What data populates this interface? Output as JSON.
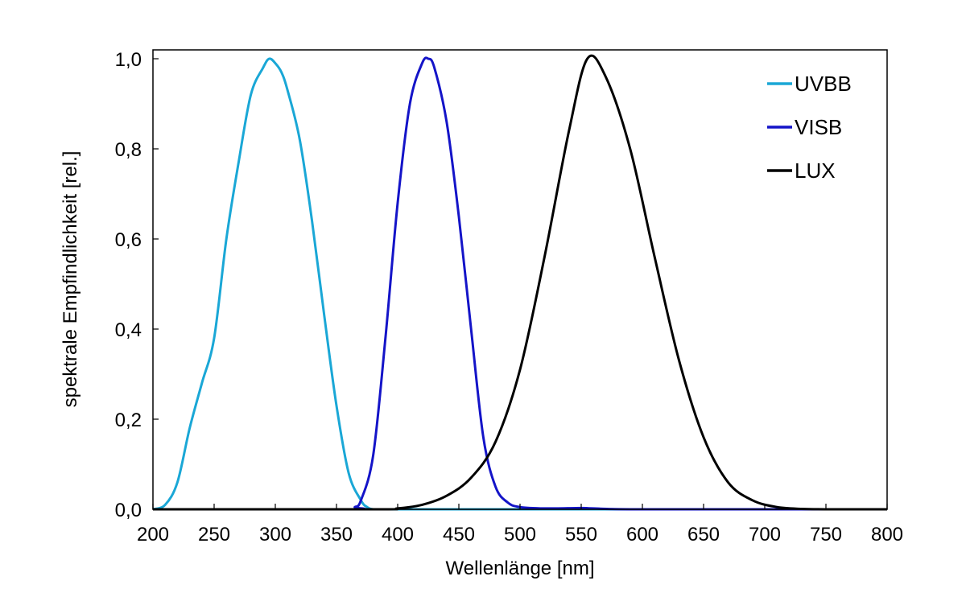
{
  "chart_data": {
    "type": "line",
    "xlabel": "Wellenlänge [nm]",
    "ylabel": "spektrale Empfindlichkeit [rel.]",
    "xlim": [
      200,
      800
    ],
    "ylim": [
      0,
      1.0
    ],
    "x_ticks": [
      "200",
      "250",
      "300",
      "350",
      "400",
      "450",
      "500",
      "550",
      "600",
      "650",
      "700",
      "750",
      "800"
    ],
    "y_ticks": [
      "0,0",
      "0,2",
      "0,4",
      "0,6",
      "0,8",
      "1,0"
    ],
    "legend_position": "top-right",
    "grid": false,
    "series": [
      {
        "name": "UVBB",
        "color": "#1aa7d6",
        "x": [
          200,
          210,
          220,
          230,
          240,
          250,
          260,
          270,
          280,
          290,
          295,
          300,
          305,
          310,
          320,
          330,
          340,
          350,
          360,
          370,
          375,
          380,
          390,
          800
        ],
        "y": [
          0.0,
          0.01,
          0.06,
          0.18,
          0.28,
          0.38,
          0.6,
          0.77,
          0.92,
          0.98,
          1.0,
          0.99,
          0.97,
          0.93,
          0.82,
          0.64,
          0.43,
          0.23,
          0.08,
          0.02,
          0.005,
          0.0,
          0.0,
          0.0
        ]
      },
      {
        "name": "VISB",
        "color": "#1414c8",
        "x": [
          200,
          360,
          365,
          370,
          380,
          390,
          400,
          410,
          420,
          425,
          430,
          440,
          450,
          460,
          470,
          480,
          490,
          500,
          520,
          550,
          560,
          600,
          800
        ],
        "y": [
          0.0,
          0.0,
          0.005,
          0.02,
          0.12,
          0.38,
          0.68,
          0.9,
          0.99,
          1.0,
          0.98,
          0.86,
          0.65,
          0.4,
          0.16,
          0.05,
          0.015,
          0.005,
          0.002,
          0.003,
          0.002,
          0.0,
          0.0
        ]
      },
      {
        "name": "LUX",
        "color": "#000000",
        "x": [
          200,
          380,
          400,
          420,
          440,
          460,
          480,
          500,
          520,
          540,
          555,
          570,
          590,
          610,
          630,
          650,
          670,
          690,
          710,
          730,
          750,
          800
        ],
        "y": [
          0.0,
          0.0,
          0.002,
          0.01,
          0.03,
          0.07,
          0.15,
          0.31,
          0.56,
          0.84,
          1.0,
          0.96,
          0.8,
          0.56,
          0.33,
          0.16,
          0.06,
          0.02,
          0.005,
          0.001,
          0.0,
          0.0
        ]
      }
    ]
  }
}
